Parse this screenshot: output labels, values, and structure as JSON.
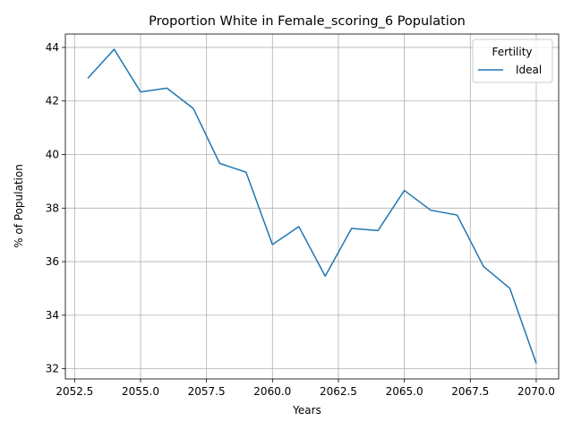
{
  "chart_data": {
    "type": "line",
    "title": "Proportion White in Female_scoring_6 Population",
    "xlabel": "Years",
    "ylabel": "% of Population",
    "xlim": [
      2052.15,
      2070.85
    ],
    "ylim": [
      31.62,
      44.5
    ],
    "xticks": [
      2052.5,
      2055.0,
      2057.5,
      2060.0,
      2062.5,
      2065.0,
      2067.5,
      2070.0
    ],
    "xtick_labels": [
      "2052.5",
      "2055.0",
      "2057.5",
      "2060.0",
      "2062.5",
      "2065.0",
      "2067.5",
      "2070.0"
    ],
    "yticks": [
      32,
      34,
      36,
      38,
      40,
      42,
      44
    ],
    "ytick_labels": [
      "32",
      "34",
      "36",
      "38",
      "40",
      "42",
      "44"
    ],
    "grid": true,
    "legend": {
      "title": "Fertility",
      "placement": "top-right"
    },
    "series": [
      {
        "name": "Ideal",
        "color": "#1f77b4",
        "x": [
          2053,
          2054,
          2055,
          2056,
          2057,
          2058,
          2059,
          2060,
          2061,
          2062,
          2063,
          2064,
          2065,
          2066,
          2067,
          2068,
          2069,
          2070
        ],
        "y": [
          42.85,
          43.93,
          42.34,
          42.48,
          41.72,
          39.67,
          39.34,
          36.64,
          37.31,
          35.46,
          37.24,
          37.16,
          38.66,
          37.92,
          37.74,
          35.82,
          35.0,
          32.2
        ]
      }
    ]
  }
}
